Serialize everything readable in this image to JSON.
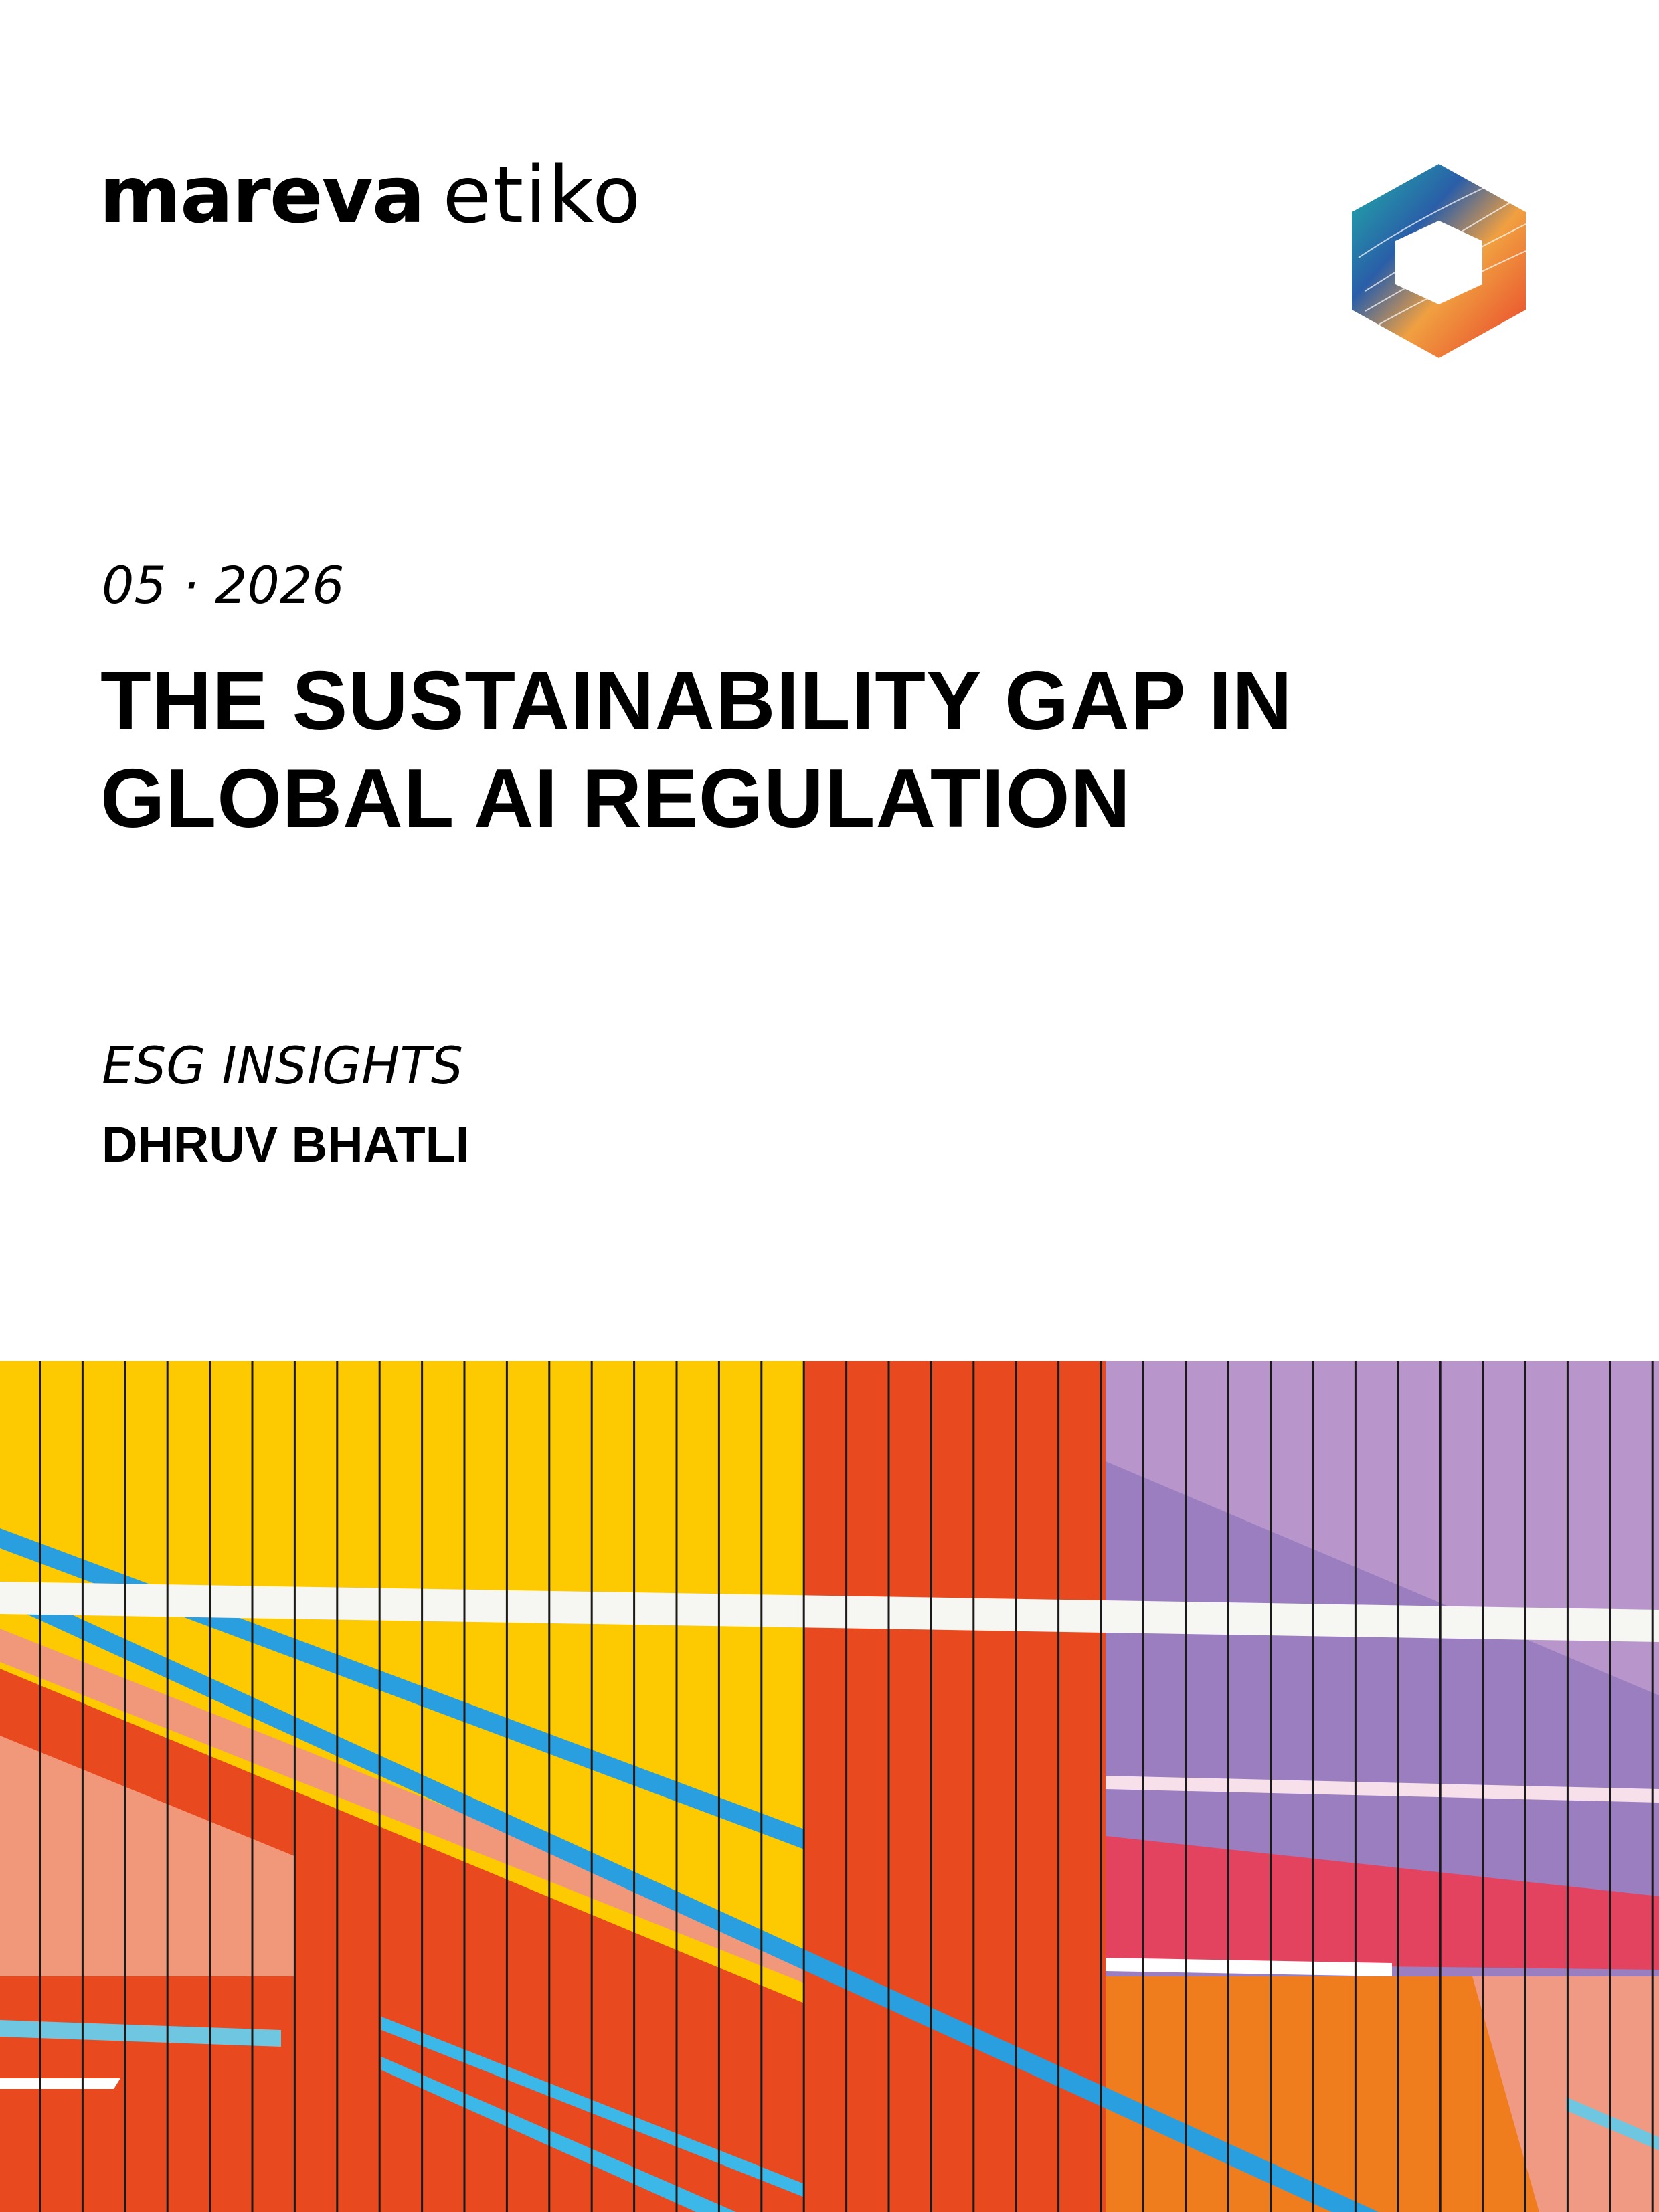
{
  "header": {
    "brand_bold": "mareva",
    "brand_light": "etiko"
  },
  "date": "05 · 2026",
  "title": {
    "lines": [
      "THE SUSTAINABILITY GAP IN",
      "GLOBAL AI REGULATION"
    ]
  },
  "series": "ESG INSIGHTS",
  "author": "DHRUV BHATLI"
}
